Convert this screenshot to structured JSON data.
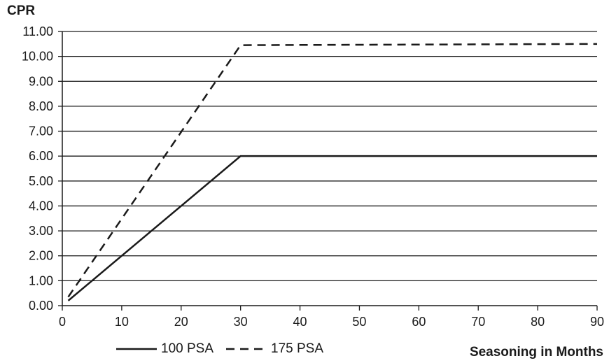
{
  "chart_data": {
    "type": "line",
    "ylabel": "CPR",
    "xlabel": "Seasoning in Months",
    "xlim": [
      0,
      90
    ],
    "ylim": [
      0,
      11
    ],
    "x_ticks": [
      "0",
      "10",
      "20",
      "30",
      "40",
      "50",
      "60",
      "70",
      "80",
      "90"
    ],
    "y_ticks": [
      "0.00",
      "1.00",
      "2.00",
      "3.00",
      "4.00",
      "5.00",
      "6.00",
      "7.00",
      "8.00",
      "9.00",
      "10.00",
      "11.00"
    ],
    "grid": "horizontal",
    "legend_position": "bottom-left",
    "series": [
      {
        "name": "100 PSA",
        "style": "solid",
        "color": "#1a1a1a",
        "x": [
          1,
          30,
          90
        ],
        "y": [
          0.2,
          6.0,
          6.0
        ]
      },
      {
        "name": "175 PSA",
        "style": "dashed",
        "color": "#1a1a1a",
        "x": [
          1,
          30,
          90
        ],
        "y": [
          0.35,
          10.45,
          10.5
        ]
      }
    ]
  }
}
